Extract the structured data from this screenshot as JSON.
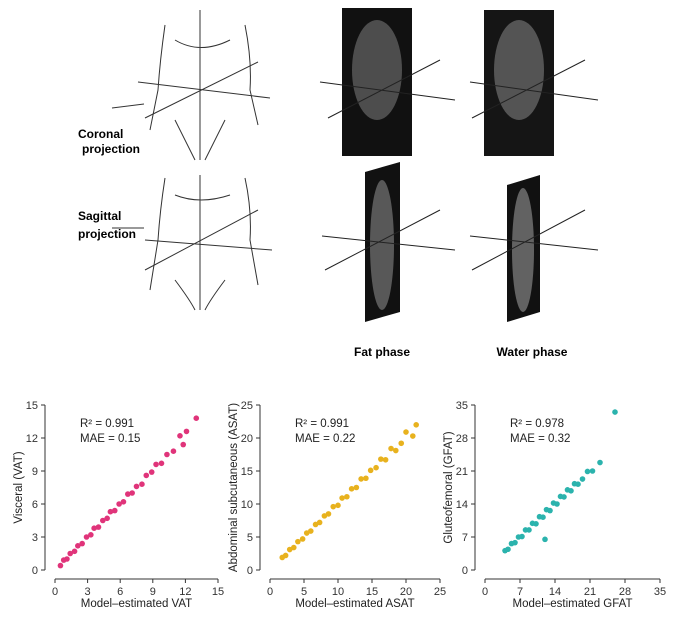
{
  "figure": {
    "labels": {
      "coronal": [
        "Coronal",
        "projection"
      ],
      "sagittal": [
        "Sagittal",
        "projection"
      ],
      "fat": "Fat phase",
      "water": "Water phase"
    }
  },
  "chart_data": [
    {
      "type": "scatter",
      "x_label": "Model–estimated VAT",
      "y_label": "Visceral (VAT)",
      "annotations": [
        "R² = 0.991",
        "MAE = 0.15"
      ],
      "color": "#e0347a",
      "xlim": [
        0,
        15
      ],
      "xticks": [
        0,
        3,
        6,
        9,
        12,
        15
      ],
      "ylim": [
        0,
        15
      ],
      "yticks": [
        0,
        3,
        6,
        9,
        12,
        15
      ],
      "x": [
        0.5,
        0.8,
        1.1,
        1.4,
        1.8,
        2.1,
        2.5,
        2.9,
        3.3,
        3.6,
        4.0,
        4.4,
        4.8,
        5.1,
        5.5,
        5.9,
        6.3,
        6.7,
        7.1,
        7.5,
        8.0,
        8.4,
        8.9,
        9.3,
        9.8,
        10.3,
        10.9,
        11.5,
        11.8,
        12.1,
        13.0
      ],
      "values": [
        0.4,
        0.9,
        1.0,
        1.5,
        1.7,
        2.2,
        2.4,
        3.0,
        3.2,
        3.8,
        3.9,
        4.5,
        4.7,
        5.3,
        5.4,
        6.0,
        6.2,
        6.9,
        7.0,
        7.6,
        7.8,
        8.6,
        8.9,
        9.6,
        9.7,
        10.5,
        10.8,
        12.2,
        11.4,
        12.6,
        13.8
      ]
    },
    {
      "type": "scatter",
      "x_label": "Model–estimated ASAT",
      "y_label": "Abdominal subcutaneous (ASAT)",
      "annotations": [
        "R² = 0.991",
        "MAE = 0.22"
      ],
      "color": "#e8b21e",
      "xlim": [
        0,
        25
      ],
      "xticks": [
        0,
        5,
        10,
        15,
        20,
        25
      ],
      "ylim": [
        0,
        25
      ],
      "yticks": [
        0,
        5,
        10,
        15,
        20,
        25
      ],
      "x": [
        1.8,
        2.3,
        2.9,
        3.5,
        4.1,
        4.8,
        5.4,
        6.0,
        6.7,
        7.3,
        8.0,
        8.6,
        9.3,
        10.0,
        10.6,
        11.3,
        12.0,
        12.7,
        13.4,
        14.1,
        14.8,
        15.6,
        16.3,
        17.0,
        17.8,
        18.5,
        19.3,
        20.0,
        21.0,
        21.5
      ],
      "values": [
        1.9,
        2.2,
        3.1,
        3.4,
        4.3,
        4.7,
        5.6,
        5.9,
        6.9,
        7.2,
        8.2,
        8.5,
        9.6,
        9.8,
        10.9,
        11.1,
        12.3,
        12.5,
        13.8,
        13.9,
        15.1,
        15.5,
        16.8,
        16.7,
        18.4,
        18.1,
        19.2,
        20.9,
        20.3,
        22.0
      ]
    },
    {
      "type": "scatter",
      "x_label": "Model–estimated GFAT",
      "y_label": "Gluteofemoral (GFAT)",
      "annotations": [
        "R² = 0.978",
        "MAE = 0.32"
      ],
      "color": "#2bb3ad",
      "xlim": [
        0,
        35
      ],
      "xticks": [
        0,
        7,
        14,
        21,
        28,
        35
      ],
      "ylim": [
        0,
        35
      ],
      "yticks": [
        0,
        7,
        14,
        21,
        28,
        35
      ],
      "x": [
        4.0,
        4.6,
        5.3,
        6.0,
        6.7,
        7.4,
        8.1,
        8.8,
        9.5,
        10.2,
        10.9,
        11.6,
        12.3,
        13.0,
        13.7,
        14.4,
        15.1,
        15.8,
        16.5,
        17.2,
        17.9,
        18.6,
        19.5,
        20.5,
        21.5,
        23.0,
        12.0,
        26.0
      ],
      "values": [
        4.1,
        4.4,
        5.6,
        5.8,
        7.0,
        7.1,
        8.5,
        8.5,
        9.9,
        9.8,
        11.3,
        11.2,
        12.8,
        12.6,
        14.2,
        14.0,
        15.6,
        15.5,
        17.0,
        16.8,
        18.3,
        18.2,
        19.3,
        20.9,
        21.0,
        22.8,
        6.5,
        33.5
      ]
    }
  ]
}
